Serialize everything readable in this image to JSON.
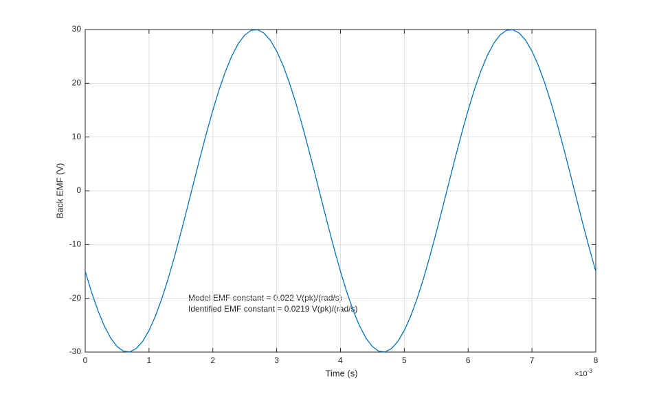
{
  "chart_data": {
    "type": "line",
    "xlabel": "Time (s)",
    "ylabel": "Back EMF (V)",
    "x_multiplier": "×10",
    "x_exponent": "-3",
    "annotations": [
      "Model EMF constant = 0.022 V(pk)/(rad/s)",
      "Identified EMF constant = 0.0219 V(pk)/(rad/s)"
    ],
    "x": [
      0,
      0.1,
      0.2,
      0.3,
      0.4,
      0.5,
      0.6,
      0.7,
      0.8,
      0.9,
      1,
      1.1,
      1.2,
      1.3,
      1.4,
      1.5,
      1.6,
      1.7,
      1.8,
      1.9,
      2,
      2.1,
      2.2,
      2.3,
      2.4,
      2.5,
      2.6,
      2.7,
      2.8,
      2.9,
      3,
      3.1,
      3.2,
      3.3,
      3.4,
      3.5,
      3.6,
      3.7,
      3.8,
      3.9,
      4,
      4.1,
      4.2,
      4.3,
      4.4,
      4.5,
      4.6,
      4.7,
      4.8,
      4.9,
      5,
      5.1,
      5.2,
      5.3,
      5.4,
      5.5,
      5.6,
      5.7,
      5.8,
      5.9,
      6,
      6.1,
      6.2,
      6.3,
      6.4,
      6.5,
      6.6,
      6.7,
      6.8,
      6.9,
      7,
      7.1,
      7.2,
      7.3,
      7.4,
      7.5,
      7.6,
      7.7,
      7.8,
      7.9,
      8
    ],
    "series": [
      {
        "color": "#0072bd",
        "values": [
          -15,
          -18.88,
          -22.29,
          -25.16,
          -27.41,
          -28.98,
          -29.84,
          -29.96,
          -29.34,
          -28.01,
          -25.98,
          -23.31,
          -20.07,
          -16.34,
          -12.2,
          -7.76,
          -3.14,
          1.57,
          6.24,
          10.75,
          15,
          18.88,
          22.29,
          25.16,
          27.41,
          28.98,
          29.84,
          29.96,
          29.34,
          28.01,
          25.98,
          23.31,
          20.07,
          16.34,
          12.2,
          7.76,
          3.14,
          -1.57,
          -6.24,
          -10.75,
          -15,
          -18.88,
          -22.29,
          -25.16,
          -27.41,
          -28.98,
          -29.84,
          -29.96,
          -29.34,
          -28.01,
          -25.98,
          -23.31,
          -20.07,
          -16.34,
          -12.2,
          -7.76,
          -3.14,
          1.57,
          6.24,
          10.75,
          15,
          18.88,
          22.29,
          25.16,
          27.41,
          28.98,
          29.84,
          29.96,
          29.34,
          28.01,
          25.98,
          23.31,
          20.07,
          16.34,
          12.2,
          7.76,
          3.14,
          -1.57,
          -6.24,
          -10.75,
          -15
        ]
      }
    ],
    "xlim": [
      0,
      8
    ],
    "xticks": [
      0,
      1,
      2,
      3,
      4,
      5,
      6,
      7,
      8
    ],
    "ylim": [
      -30,
      30
    ],
    "yticks": [
      -30,
      -20,
      -10,
      0,
      10,
      20,
      30
    ],
    "grid": true
  }
}
